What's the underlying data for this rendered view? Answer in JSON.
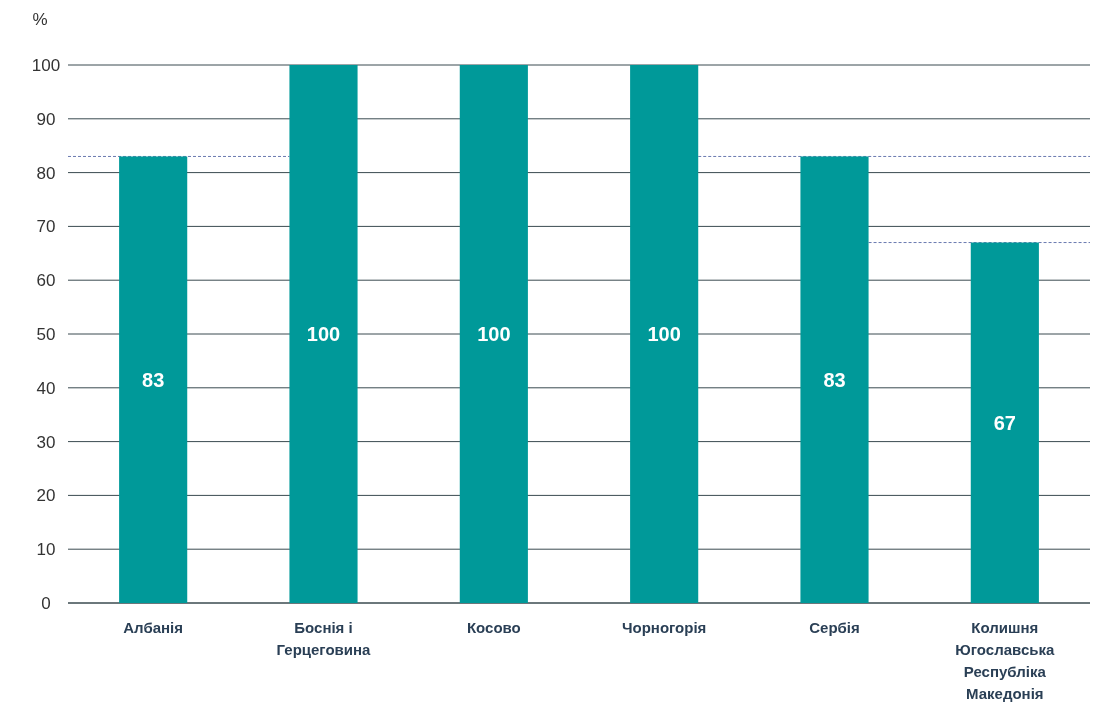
{
  "chart_data": {
    "type": "bar",
    "ylabel": "%",
    "categories": [
      "Албанія",
      "Боснія і Герцеговина",
      "Косово",
      "Чорногорія",
      "Сербія",
      "Колишня Югославська Республіка Македонія"
    ],
    "values": [
      83,
      100,
      100,
      100,
      83,
      67
    ],
    "color": "#009999",
    "ylim": [
      0,
      100
    ],
    "yticks": [
      0,
      10,
      20,
      30,
      40,
      50,
      60,
      70,
      80,
      90,
      100
    ],
    "grid": "y",
    "data_labels": true
  }
}
